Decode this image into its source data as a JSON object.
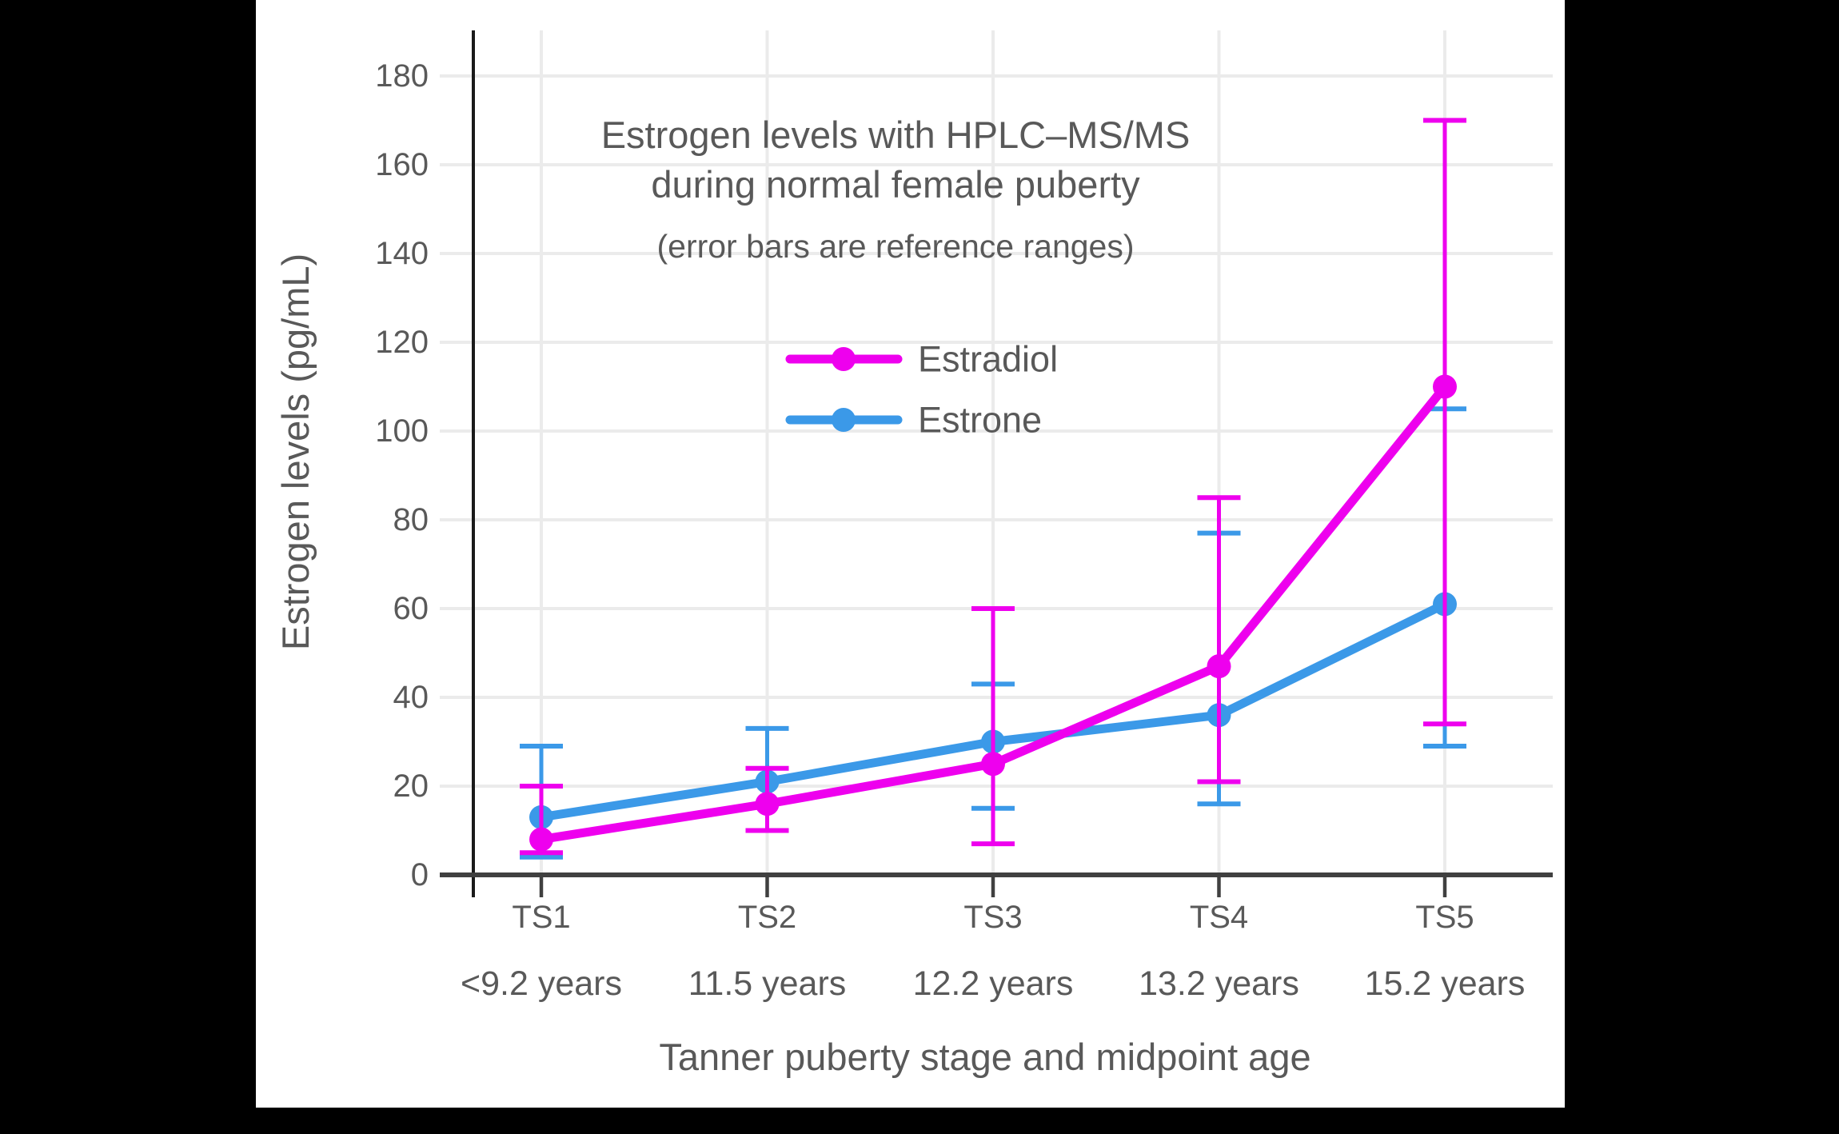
{
  "chart_data": {
    "type": "line",
    "title": "Estrogen levels with HPLC–MS/MS",
    "title_line2": "during normal female puberty",
    "subtitle": "(error bars are reference ranges)",
    "xlabel": "Tanner puberty stage and midpoint age",
    "ylabel": "Estrogen levels (pg/mL)",
    "categories": [
      "TS1",
      "TS2",
      "TS3",
      "TS4",
      "TS5"
    ],
    "category_sublabels": [
      "<9.2 years",
      "11.5 years",
      "12.2 years",
      "13.2 years",
      "15.2 years"
    ],
    "y_ticks": [
      0,
      20,
      40,
      60,
      80,
      100,
      120,
      140,
      160,
      180
    ],
    "ylim": [
      0,
      188
    ],
    "grid": true,
    "legend_position": "inside-upper-left",
    "legend_display_order": [
      1,
      0
    ],
    "series": [
      {
        "name": "Estrone",
        "color": "#3B99E8",
        "values": [
          13,
          21,
          30,
          36,
          61
        ],
        "range_low": [
          4,
          10,
          15,
          16,
          29
        ],
        "range_high": [
          29,
          33,
          43,
          77,
          105
        ]
      },
      {
        "name": "Estradiol",
        "color": "#EE00EE",
        "values": [
          8,
          16,
          25,
          47,
          110
        ],
        "range_low": [
          5,
          10,
          7,
          21,
          34
        ],
        "range_high": [
          20,
          24,
          60,
          85,
          170
        ]
      }
    ],
    "colors": {
      "text": "#595959",
      "grid": "#EBEBEB",
      "axis_baseline": "#404040",
      "axis_spine": "#1A1A1A",
      "card_background": "#FFFFFF",
      "page_background": "#000000"
    }
  }
}
